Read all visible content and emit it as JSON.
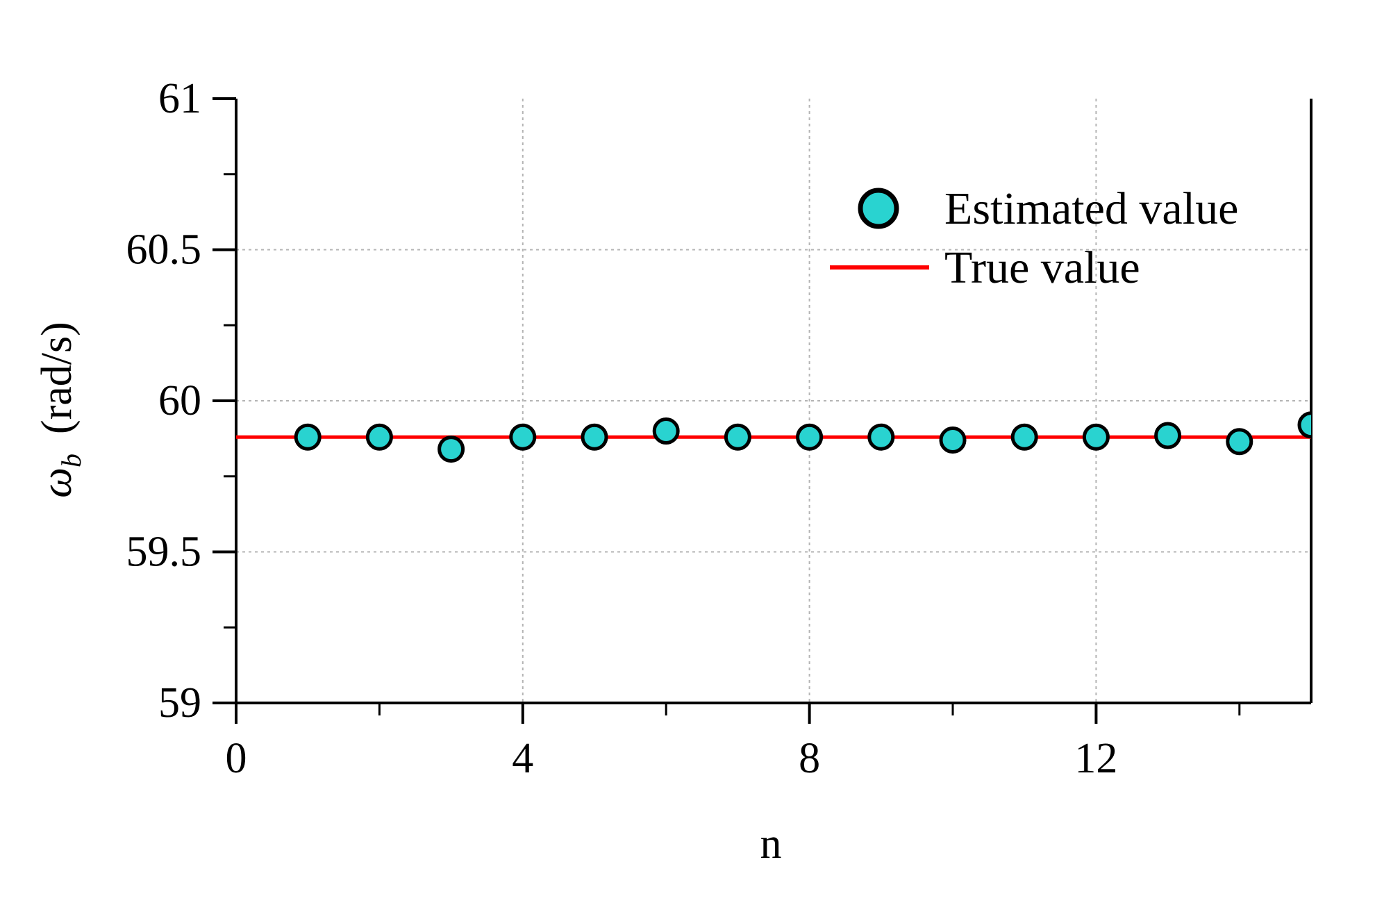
{
  "chart_data": {
    "type": "scatter",
    "title": "",
    "xlabel": "n",
    "ylabel": {
      "symbol": "ω",
      "subscript": "b",
      "unit": "(rad/s)"
    },
    "xlim": [
      0,
      15
    ],
    "ylim": [
      59,
      61
    ],
    "x_ticks": [
      0,
      4,
      8,
      12
    ],
    "x_tick_labels": [
      "0",
      "4",
      "8",
      "12"
    ],
    "x_minor_ticks": [
      2,
      6,
      10,
      14
    ],
    "y_ticks": [
      59,
      59.5,
      60,
      60.5,
      61
    ],
    "y_tick_labels": [
      "59",
      "59.5",
      "60",
      "60.5",
      "61"
    ],
    "y_minor_ticks": [
      59.25,
      59.75,
      60.25,
      60.75
    ],
    "grid": true,
    "legend_position": "top-right",
    "series": [
      {
        "name": "Estimated value",
        "kind": "scatter",
        "color": "#29D3D0",
        "x": [
          1,
          2,
          3,
          4,
          5,
          6,
          7,
          8,
          9,
          10,
          11,
          12,
          13,
          14,
          15
        ],
        "y": [
          59.88,
          59.88,
          59.84,
          59.88,
          59.88,
          59.9,
          59.88,
          59.88,
          59.88,
          59.87,
          59.88,
          59.88,
          59.885,
          59.865,
          59.92
        ]
      },
      {
        "name": "True value",
        "kind": "line",
        "color": "#FF0000",
        "x": [
          0,
          15
        ],
        "y": [
          59.88,
          59.88
        ]
      }
    ]
  }
}
